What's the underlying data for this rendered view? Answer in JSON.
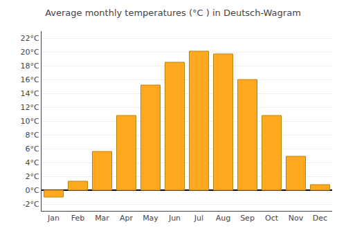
{
  "chart_data": {
    "type": "bar",
    "title": "Average monthly temperatures (°C ) in Deutsch-Wagram",
    "categories": [
      "Jan",
      "Feb",
      "Mar",
      "Apr",
      "May",
      "Jun",
      "Jul",
      "Aug",
      "Sep",
      "Oct",
      "Nov",
      "Dec"
    ],
    "values": [
      -1.0,
      1.3,
      5.6,
      10.8,
      15.2,
      18.5,
      20.1,
      19.7,
      16.0,
      10.8,
      4.9,
      0.8
    ],
    "color": "#FFA820",
    "ylim": [
      -3,
      23
    ],
    "yticks": [
      {
        "value": -2,
        "label": "-2°C"
      },
      {
        "value": 0,
        "label": "0°C"
      },
      {
        "value": 2,
        "label": "2°C"
      },
      {
        "value": 4,
        "label": "4°C"
      },
      {
        "value": 6,
        "label": "6°C"
      },
      {
        "value": 8,
        "label": "8°C"
      },
      {
        "value": 10,
        "label": "10°C"
      },
      {
        "value": 12,
        "label": "12°C"
      },
      {
        "value": 14,
        "label": "14°C"
      },
      {
        "value": 16,
        "label": "16°C"
      },
      {
        "value": 18,
        "label": "18°C"
      },
      {
        "value": 20,
        "label": "20°C"
      },
      {
        "value": 22,
        "label": "22°C"
      }
    ],
    "grid": true
  }
}
